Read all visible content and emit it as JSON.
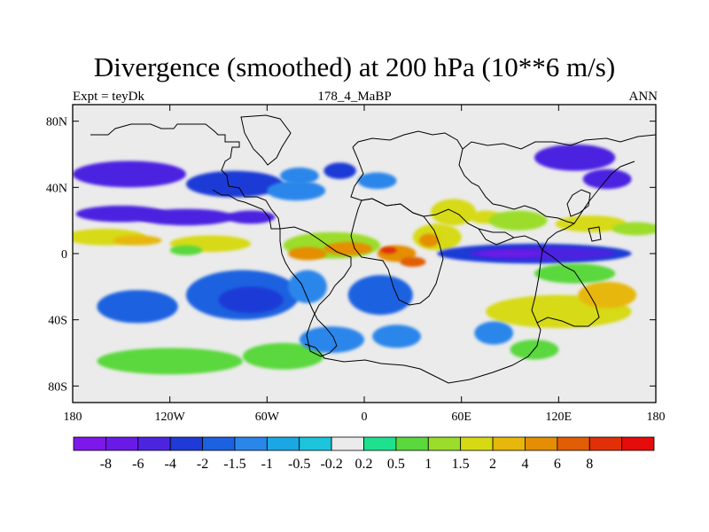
{
  "title": "Divergence (smoothed) at 200 hPa (10**6 m/s)",
  "subtitle_left": "Expt = teyDk",
  "subtitle_center": "178_4_MaBP",
  "subtitle_right": "ANN",
  "chart_data": {
    "type": "heatmap",
    "variable": "Divergence (smoothed)",
    "level": "200 hPa",
    "units": "10**6 m/s",
    "season": "ANN",
    "x_range": [
      -180,
      180
    ],
    "y_range": [
      -90,
      90
    ],
    "x_ticks": [
      {
        "value": -180,
        "label": "180"
      },
      {
        "value": -120,
        "label": "120W"
      },
      {
        "value": -60,
        "label": "60W"
      },
      {
        "value": 0,
        "label": "0"
      },
      {
        "value": 60,
        "label": "60E"
      },
      {
        "value": 120,
        "label": "120E"
      },
      {
        "value": 180,
        "label": "180"
      }
    ],
    "y_ticks": [
      {
        "value": 80,
        "label": "80N"
      },
      {
        "value": 40,
        "label": "40N"
      },
      {
        "value": 0,
        "label": "0"
      },
      {
        "value": -40,
        "label": "40S"
      },
      {
        "value": -80,
        "label": "80S"
      }
    ],
    "colorbar": {
      "colors": [
        "#7d18ea",
        "#6a1ae6",
        "#4c24e0",
        "#1f3ad6",
        "#1c62e0",
        "#2b86ea",
        "#1ba6e4",
        "#1cc4dc",
        "#ebebeb",
        "#1ee08f",
        "#5ad83c",
        "#9bdd2a",
        "#d7da12",
        "#e7b70b",
        "#e48e05",
        "#e15d06",
        "#e12f08",
        "#e50c0c"
      ],
      "labels": [
        "-8",
        "-6",
        "-4",
        "-2",
        "-1.5",
        "-1",
        "-0.5",
        "-0.2",
        "0.2",
        "0.5",
        "1",
        "1.5",
        "2",
        "4",
        "6",
        "8"
      ]
    },
    "field_patches": [
      {
        "lon": -145,
        "lat": 48,
        "rlon": 35,
        "rlat": 8,
        "level": 2
      },
      {
        "lon": -80,
        "lat": 42,
        "rlon": 30,
        "rlat": 8,
        "level": 3
      },
      {
        "lon": -42,
        "lat": 38,
        "rlon": 18,
        "rlat": 6,
        "level": 5
      },
      {
        "lon": -40,
        "lat": 47,
        "rlon": 12,
        "rlat": 5,
        "level": 5
      },
      {
        "lon": -15,
        "lat": 50,
        "rlon": 10,
        "rlat": 5,
        "level": 3
      },
      {
        "lon": 8,
        "lat": 44,
        "rlon": 12,
        "rlat": 5,
        "level": 5
      },
      {
        "lon": 130,
        "lat": 58,
        "rlon": 25,
        "rlat": 8,
        "level": 2
      },
      {
        "lon": 150,
        "lat": 45,
        "rlon": 15,
        "rlat": 6,
        "level": 2
      },
      {
        "lon": -150,
        "lat": 24,
        "rlon": 28,
        "rlat": 5,
        "level": 2
      },
      {
        "lon": -110,
        "lat": 22,
        "rlon": 30,
        "rlat": 5,
        "level": 2
      },
      {
        "lon": -70,
        "lat": 22,
        "rlon": 15,
        "rlat": 4,
        "level": 2
      },
      {
        "lon": -160,
        "lat": 10,
        "rlon": 25,
        "rlat": 5,
        "level": 12
      },
      {
        "lon": -140,
        "lat": 8,
        "rlon": 15,
        "rlat": 3,
        "level": 13
      },
      {
        "lon": -95,
        "lat": 6,
        "rlon": 25,
        "rlat": 5,
        "level": 12
      },
      {
        "lon": -110,
        "lat": 2,
        "rlon": 10,
        "rlat": 3,
        "level": 10
      },
      {
        "lon": -20,
        "lat": 5,
        "rlon": 30,
        "rlat": 8,
        "level": 11
      },
      {
        "lon": -35,
        "lat": 0,
        "rlon": 12,
        "rlat": 4,
        "level": 14
      },
      {
        "lon": -10,
        "lat": 3,
        "rlon": 15,
        "rlat": 4,
        "level": 14
      },
      {
        "lon": 20,
        "lat": 0,
        "rlon": 12,
        "rlat": 5,
        "level": 14
      },
      {
        "lon": 15,
        "lat": 2,
        "rlon": 5,
        "rlat": 2,
        "level": 16
      },
      {
        "lon": 30,
        "lat": -5,
        "rlon": 8,
        "rlat": 3,
        "level": 15
      },
      {
        "lon": 45,
        "lat": 10,
        "rlon": 15,
        "rlat": 8,
        "level": 12
      },
      {
        "lon": 40,
        "lat": 8,
        "rlon": 6,
        "rlat": 4,
        "level": 14
      },
      {
        "lon": 55,
        "lat": 25,
        "rlon": 14,
        "rlat": 8,
        "level": 12
      },
      {
        "lon": 75,
        "lat": 22,
        "rlon": 10,
        "rlat": 4,
        "level": 12
      },
      {
        "lon": 95,
        "lat": 20,
        "rlon": 18,
        "rlat": 6,
        "level": 11
      },
      {
        "lon": 140,
        "lat": 18,
        "rlon": 22,
        "rlat": 5,
        "level": 12
      },
      {
        "lon": 168,
        "lat": 15,
        "rlon": 15,
        "rlat": 4,
        "level": 11
      },
      {
        "lon": 105,
        "lat": 0,
        "rlon": 60,
        "rlat": 6,
        "level": 3
      },
      {
        "lon": 110,
        "lat": 0,
        "rlon": 45,
        "rlat": 4,
        "level": 2
      },
      {
        "lon": 90,
        "lat": 0,
        "rlon": 20,
        "rlat": 2,
        "level": 1
      },
      {
        "lon": -75,
        "lat": -25,
        "rlon": 35,
        "rlat": 15,
        "level": 4
      },
      {
        "lon": -70,
        "lat": -28,
        "rlon": 20,
        "rlat": 8,
        "level": 3
      },
      {
        "lon": -140,
        "lat": -32,
        "rlon": 25,
        "rlat": 10,
        "level": 4
      },
      {
        "lon": -35,
        "lat": -20,
        "rlon": 12,
        "rlat": 10,
        "level": 5
      },
      {
        "lon": 10,
        "lat": -25,
        "rlon": 20,
        "rlat": 12,
        "level": 4
      },
      {
        "lon": 120,
        "lat": -35,
        "rlon": 45,
        "rlat": 10,
        "level": 12
      },
      {
        "lon": 150,
        "lat": -25,
        "rlon": 18,
        "rlat": 8,
        "level": 13
      },
      {
        "lon": 130,
        "lat": -12,
        "rlon": 25,
        "rlat": 6,
        "level": 10
      },
      {
        "lon": -120,
        "lat": -65,
        "rlon": 45,
        "rlat": 8,
        "level": 10
      },
      {
        "lon": -50,
        "lat": -62,
        "rlon": 25,
        "rlat": 8,
        "level": 10
      },
      {
        "lon": -20,
        "lat": -52,
        "rlon": 20,
        "rlat": 8,
        "level": 5
      },
      {
        "lon": 20,
        "lat": -50,
        "rlon": 15,
        "rlat": 7,
        "level": 5
      },
      {
        "lon": 80,
        "lat": -48,
        "rlon": 12,
        "rlat": 7,
        "level": 5
      },
      {
        "lon": 105,
        "lat": -58,
        "rlon": 15,
        "rlat": 6,
        "level": 10
      }
    ]
  }
}
